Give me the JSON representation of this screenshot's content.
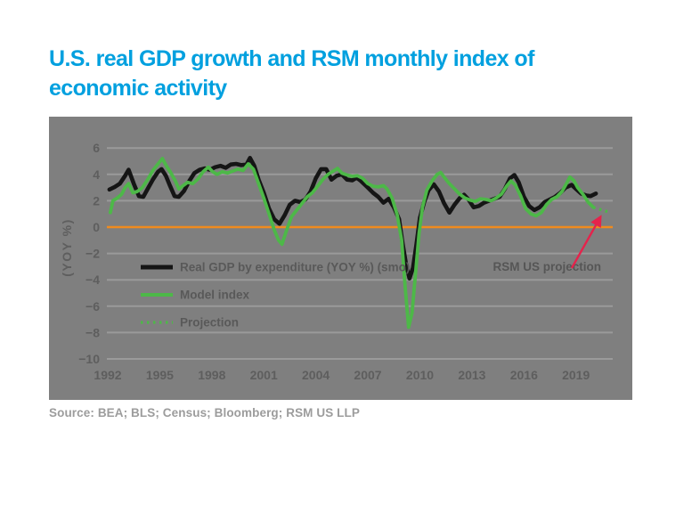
{
  "title": {
    "line1": "U.S. real GDP growth and RSM monthly index of",
    "line2": "economic activity"
  },
  "source": "Source: BEA; BLS; Census; Bloomberg; RSM US LLP",
  "annotation": {
    "label": "RSM US projection"
  },
  "colors": {
    "title_text": "#00A0DF",
    "panel_bg": "#7F7F7F",
    "gridline": "#9A9A9A",
    "tick_text": "#5E5E5E",
    "legend_text": "#595959",
    "zero_line": "#F08B1E",
    "gdp_line": "#151515",
    "model_line": "#4DB848",
    "projection_line": "#4DB848",
    "arrow": "#E5234C",
    "source_text": "#9C9C9C"
  },
  "chart_data": {
    "type": "line",
    "title": "U.S. real GDP growth and RSM monthly index of economic activity",
    "grid": "horizontal",
    "legend_position": "inside-left",
    "xlim": [
      1991.6,
      2021.4
    ],
    "ylim": [
      -11.2,
      6.9
    ],
    "y_axis": {
      "title": "(YOY %)",
      "tick_values": [
        6,
        4,
        2,
        0,
        -2,
        -4,
        -6,
        -8,
        -10
      ],
      "tick_labels": [
        "6",
        "4",
        "2",
        "0",
        "−2",
        "−4",
        "−6",
        "−8",
        "−10"
      ]
    },
    "x_axis": {
      "tick_values": [
        1992,
        1995,
        1998,
        2001,
        2004,
        2007,
        2010,
        2013,
        2016,
        2019
      ],
      "tick_labels": [
        "1992",
        "1995",
        "1998",
        "2001",
        "2004",
        "2007",
        "2010",
        "2013",
        "2016",
        "2019"
      ]
    },
    "zero_baseline": 0,
    "series": [
      {
        "name": "Real GDP by expenditure (YOY %) (smo)",
        "style": "solid",
        "color_key": "gdp_line",
        "points": [
          [
            1992.1,
            2.85
          ],
          [
            1992.4,
            3.05
          ],
          [
            1992.7,
            3.3
          ],
          [
            1993.0,
            3.9
          ],
          [
            1993.2,
            4.35
          ],
          [
            1993.5,
            3.3
          ],
          [
            1993.8,
            2.35
          ],
          [
            1994.05,
            2.3
          ],
          [
            1994.3,
            2.9
          ],
          [
            1994.6,
            3.6
          ],
          [
            1994.9,
            4.2
          ],
          [
            1995.1,
            4.4
          ],
          [
            1995.35,
            3.9
          ],
          [
            1995.6,
            3.1
          ],
          [
            1995.85,
            2.35
          ],
          [
            1996.1,
            2.3
          ],
          [
            1996.4,
            2.75
          ],
          [
            1996.7,
            3.5
          ],
          [
            1997.0,
            4.1
          ],
          [
            1997.3,
            4.35
          ],
          [
            1997.6,
            4.45
          ],
          [
            1997.9,
            4.35
          ],
          [
            1998.2,
            4.55
          ],
          [
            1998.5,
            4.65
          ],
          [
            1998.8,
            4.5
          ],
          [
            1999.1,
            4.75
          ],
          [
            1999.4,
            4.8
          ],
          [
            1999.7,
            4.7
          ],
          [
            2000.0,
            4.75
          ],
          [
            2000.2,
            5.25
          ],
          [
            2000.45,
            4.65
          ],
          [
            2000.7,
            3.6
          ],
          [
            2001.0,
            2.6
          ],
          [
            2001.3,
            1.4
          ],
          [
            2001.6,
            0.6
          ],
          [
            2001.9,
            0.25
          ],
          [
            2002.2,
            0.9
          ],
          [
            2002.5,
            1.7
          ],
          [
            2002.8,
            2.0
          ],
          [
            2003.1,
            1.9
          ],
          [
            2003.4,
            2.1
          ],
          [
            2003.7,
            2.7
          ],
          [
            2004.0,
            3.7
          ],
          [
            2004.3,
            4.4
          ],
          [
            2004.6,
            4.4
          ],
          [
            2004.9,
            3.6
          ],
          [
            2005.2,
            3.9
          ],
          [
            2005.5,
            4.0
          ],
          [
            2005.8,
            3.6
          ],
          [
            2006.1,
            3.55
          ],
          [
            2006.35,
            3.75
          ],
          [
            2006.6,
            3.5
          ],
          [
            2007.0,
            3.0
          ],
          [
            2007.3,
            2.6
          ],
          [
            2007.6,
            2.3
          ],
          [
            2007.9,
            1.85
          ],
          [
            2008.2,
            2.15
          ],
          [
            2008.5,
            1.5
          ],
          [
            2008.8,
            0.6
          ],
          [
            2009.0,
            -1.2
          ],
          [
            2009.2,
            -2.8
          ],
          [
            2009.4,
            -3.9
          ],
          [
            2009.6,
            -3.1
          ],
          [
            2009.8,
            -1.3
          ],
          [
            2010.0,
            0.7
          ],
          [
            2010.25,
            1.9
          ],
          [
            2010.5,
            2.8
          ],
          [
            2010.8,
            3.25
          ],
          [
            2011.1,
            2.7
          ],
          [
            2011.4,
            1.8
          ],
          [
            2011.7,
            1.1
          ],
          [
            2012.0,
            1.7
          ],
          [
            2012.3,
            2.2
          ],
          [
            2012.55,
            2.45
          ],
          [
            2012.8,
            2.1
          ],
          [
            2013.1,
            1.5
          ],
          [
            2013.4,
            1.6
          ],
          [
            2013.7,
            1.85
          ],
          [
            2014.0,
            2.0
          ],
          [
            2014.3,
            2.15
          ],
          [
            2014.6,
            2.3
          ],
          [
            2014.9,
            2.9
          ],
          [
            2015.2,
            3.7
          ],
          [
            2015.45,
            3.95
          ],
          [
            2015.7,
            3.4
          ],
          [
            2016.0,
            2.3
          ],
          [
            2016.3,
            1.6
          ],
          [
            2016.6,
            1.3
          ],
          [
            2016.9,
            1.5
          ],
          [
            2017.2,
            1.9
          ],
          [
            2017.5,
            2.1
          ],
          [
            2017.8,
            2.3
          ],
          [
            2018.1,
            2.6
          ],
          [
            2018.4,
            3.0
          ],
          [
            2018.75,
            3.2
          ],
          [
            2019.0,
            2.9
          ],
          [
            2019.3,
            2.55
          ],
          [
            2019.6,
            2.4
          ],
          [
            2019.85,
            2.35
          ],
          [
            2020.15,
            2.55
          ]
        ]
      },
      {
        "name": "Model index",
        "style": "solid",
        "color_key": "model_line",
        "points": [
          [
            1992.15,
            1.1
          ],
          [
            1992.3,
            2.0
          ],
          [
            1992.55,
            2.2
          ],
          [
            1992.8,
            2.5
          ],
          [
            1993.0,
            3.0
          ],
          [
            1993.2,
            3.3
          ],
          [
            1993.45,
            2.6
          ],
          [
            1993.7,
            2.7
          ],
          [
            1994.0,
            3.0
          ],
          [
            1994.3,
            3.6
          ],
          [
            1994.6,
            4.3
          ],
          [
            1994.9,
            4.8
          ],
          [
            1995.15,
            5.2
          ],
          [
            1995.4,
            4.6
          ],
          [
            1995.6,
            4.2
          ],
          [
            1995.9,
            3.5
          ],
          [
            1996.1,
            2.9
          ],
          [
            1996.35,
            3.15
          ],
          [
            1996.6,
            3.4
          ],
          [
            1996.9,
            3.3
          ],
          [
            1997.2,
            3.65
          ],
          [
            1997.5,
            4.2
          ],
          [
            1997.8,
            4.55
          ],
          [
            1998.05,
            4.2
          ],
          [
            1998.3,
            4.0
          ],
          [
            1998.6,
            4.2
          ],
          [
            1998.9,
            4.1
          ],
          [
            1999.2,
            4.25
          ],
          [
            1999.5,
            4.4
          ],
          [
            1999.8,
            4.3
          ],
          [
            2000.1,
            4.8
          ],
          [
            2000.4,
            4.4
          ],
          [
            2000.7,
            3.3
          ],
          [
            2001.0,
            2.2
          ],
          [
            2001.3,
            1.0
          ],
          [
            2001.6,
            -0.2
          ],
          [
            2001.85,
            -1.0
          ],
          [
            2002.05,
            -1.3
          ],
          [
            2002.3,
            -0.3
          ],
          [
            2002.6,
            0.8
          ],
          [
            2002.9,
            1.3
          ],
          [
            2003.2,
            1.8
          ],
          [
            2003.5,
            2.3
          ],
          [
            2003.8,
            2.6
          ],
          [
            2004.1,
            3.1
          ],
          [
            2004.4,
            3.6
          ],
          [
            2004.7,
            4.0
          ],
          [
            2005.0,
            4.25
          ],
          [
            2005.25,
            4.45
          ],
          [
            2005.5,
            4.1
          ],
          [
            2005.8,
            3.95
          ],
          [
            2006.1,
            3.85
          ],
          [
            2006.4,
            3.9
          ],
          [
            2006.7,
            3.7
          ],
          [
            2007.0,
            3.3
          ],
          [
            2007.3,
            3.1
          ],
          [
            2007.6,
            3.05
          ],
          [
            2007.9,
            3.15
          ],
          [
            2008.1,
            2.9
          ],
          [
            2008.4,
            2.2
          ],
          [
            2008.7,
            0.9
          ],
          [
            2008.95,
            -1.0
          ],
          [
            2009.15,
            -4.5
          ],
          [
            2009.35,
            -7.6
          ],
          [
            2009.55,
            -6.5
          ],
          [
            2009.75,
            -3.5
          ],
          [
            2009.95,
            -0.5
          ],
          [
            2010.15,
            1.5
          ],
          [
            2010.4,
            2.8
          ],
          [
            2010.7,
            3.5
          ],
          [
            2011.0,
            4.0
          ],
          [
            2011.2,
            4.15
          ],
          [
            2011.45,
            3.7
          ],
          [
            2011.7,
            3.3
          ],
          [
            2012.0,
            2.9
          ],
          [
            2012.3,
            2.5
          ],
          [
            2012.6,
            2.2
          ],
          [
            2012.9,
            2.05
          ],
          [
            2013.2,
            1.95
          ],
          [
            2013.5,
            2.15
          ],
          [
            2013.8,
            2.1
          ],
          [
            2014.1,
            2.0
          ],
          [
            2014.4,
            2.2
          ],
          [
            2014.7,
            2.5
          ],
          [
            2015.0,
            3.1
          ],
          [
            2015.25,
            3.5
          ],
          [
            2015.5,
            3.2
          ],
          [
            2015.8,
            2.4
          ],
          [
            2016.1,
            1.4
          ],
          [
            2016.4,
            1.0
          ],
          [
            2016.7,
            0.85
          ],
          [
            2017.0,
            1.1
          ],
          [
            2017.3,
            1.7
          ],
          [
            2017.6,
            2.1
          ],
          [
            2017.9,
            2.3
          ],
          [
            2018.2,
            2.7
          ],
          [
            2018.45,
            3.3
          ],
          [
            2018.65,
            3.8
          ],
          [
            2018.9,
            3.5
          ],
          [
            2019.1,
            3.0
          ],
          [
            2019.4,
            2.5
          ],
          [
            2019.7,
            1.9
          ],
          [
            2020.0,
            1.5
          ]
        ]
      },
      {
        "name": "Projection",
        "style": "dotted",
        "color_key": "projection_line",
        "points": [
          [
            2020.0,
            1.5
          ],
          [
            2020.25,
            1.4
          ],
          [
            2020.5,
            1.3
          ],
          [
            2020.75,
            1.2
          ],
          [
            2021.0,
            1.12
          ]
        ]
      }
    ]
  }
}
